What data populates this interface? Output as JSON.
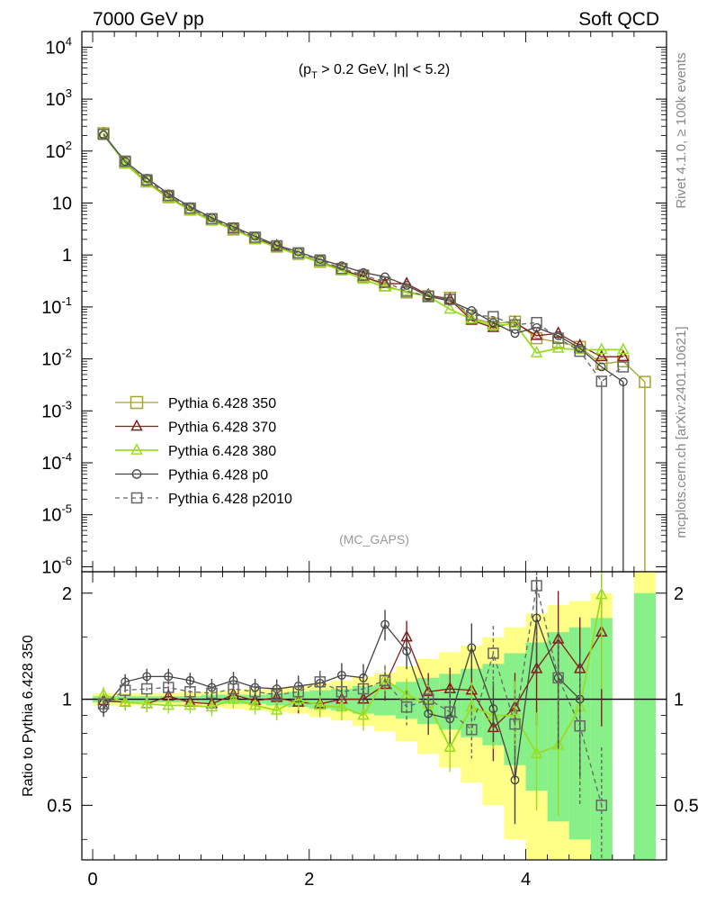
{
  "header": {
    "left": "7000 GeV pp",
    "right": "Soft QCD"
  },
  "side": {
    "rivet": "Rivet 4.1.0, ≥ 100k events",
    "mcplots": "mcplots.cern.ch [arXiv:2401.10621]"
  },
  "chart_data": [
    {
      "type": "line",
      "panel": "main",
      "annotation": "(p_T > 0.2 GeV, |η| < 5.2)",
      "annotation_parts": {
        "pre": "(p",
        "sub": "T",
        "post": " > 0.2 GeV, |η| < 5.2)"
      },
      "watermark": "(MC_GAPS)",
      "yscale": "log",
      "ylim": [
        8e-07,
        20000.0
      ],
      "xlim": [
        -0.1,
        5.3
      ],
      "y_tick_labels": [
        "10^4",
        "10^3",
        "10^2",
        "10",
        "1",
        "10^-1",
        "10^-2",
        "10^-3",
        "10^-4",
        "10^-5",
        "10^-6"
      ],
      "x": [
        0.1,
        0.3,
        0.5,
        0.7,
        0.9,
        1.1,
        1.3,
        1.5,
        1.7,
        1.9,
        2.1,
        2.3,
        2.5,
        2.7,
        2.9,
        3.1,
        3.3,
        3.5,
        3.7,
        3.9,
        4.1,
        4.3,
        4.5,
        4.7,
        4.9,
        5.1
      ],
      "series": [
        {
          "name": "Pythia 6.428 350",
          "color": "#a5a52b",
          "marker": "square",
          "dash": "solid",
          "values": [
            220,
            60,
            26,
            13,
            7.5,
            4.8,
            3.1,
            2.1,
            1.45,
            1.05,
            0.74,
            0.53,
            0.38,
            0.26,
            0.19,
            0.16,
            0.15,
            0.061,
            0.048,
            0.052,
            0.025,
            0.021,
            0.017,
            0.008,
            0.009,
            0.0036
          ]
        },
        {
          "name": "Pythia 6.428 370",
          "color": "#8b1a1a",
          "marker": "triangle",
          "dash": "solid",
          "values": [
            215,
            58,
            25,
            13.2,
            7.3,
            4.6,
            3.2,
            2.05,
            1.5,
            1.0,
            0.72,
            0.52,
            0.38,
            0.28,
            0.28,
            0.17,
            0.14,
            0.055,
            0.04,
            0.05,
            0.028,
            0.031,
            0.018,
            0.011,
            0.011,
            null
          ]
        },
        {
          "name": "Pythia 6.428 380",
          "color": "#99dd22",
          "marker": "triangle",
          "dash": "solid",
          "values": [
            210,
            57,
            24.5,
            12.5,
            7.2,
            4.5,
            3.1,
            2.0,
            1.4,
            1.0,
            0.71,
            0.5,
            0.34,
            0.24,
            0.2,
            0.16,
            0.09,
            0.058,
            0.043,
            0.048,
            0.013,
            0.016,
            0.015,
            0.015,
            0.015,
            null
          ]
        },
        {
          "name": "Pythia 6.428 p0",
          "color": "#444444",
          "marker": "circle",
          "dash": "solid",
          "values": [
            205,
            63,
            30,
            15,
            8.5,
            5.2,
            3.5,
            2.3,
            1.55,
            1.15,
            0.82,
            0.62,
            0.46,
            0.38,
            0.26,
            0.16,
            0.13,
            0.085,
            0.05,
            0.031,
            0.04,
            0.028,
            0.016,
            0.007,
            0.0036,
            null
          ]
        },
        {
          "name": "Pythia 6.428 p2010",
          "color": "#666666",
          "marker": "square",
          "dash": "dashed",
          "values": [
            210,
            64,
            28,
            14,
            8,
            5,
            3.3,
            2.2,
            1.5,
            1.1,
            0.8,
            0.55,
            0.41,
            0.3,
            0.2,
            0.16,
            0.14,
            0.07,
            0.065,
            0.045,
            0.05,
            0.025,
            0.014,
            0.0037,
            0.007,
            null
          ]
        }
      ]
    },
    {
      "type": "line",
      "panel": "ratio",
      "ylabel": "Ratio to Pythia 6.428 350",
      "ylim": [
        0.35,
        2.3
      ],
      "yticks": [
        "0.5",
        "1",
        "2"
      ],
      "xlim": [
        -0.1,
        5.3
      ],
      "xticks": [
        "0",
        "2",
        "4"
      ],
      "x": [
        0.1,
        0.3,
        0.5,
        0.7,
        0.9,
        1.1,
        1.3,
        1.5,
        1.7,
        1.9,
        2.1,
        2.3,
        2.5,
        2.7,
        2.9,
        3.1,
        3.3,
        3.5,
        3.7,
        3.9,
        4.1,
        4.3,
        4.5,
        4.7
      ],
      "band_green": [
        0.02,
        0.02,
        0.02,
        0.02,
        0.02,
        0.03,
        0.03,
        0.03,
        0.04,
        0.05,
        0.06,
        0.07,
        0.09,
        0.1,
        0.12,
        0.15,
        0.18,
        0.22,
        0.26,
        0.35,
        0.45,
        0.55,
        0.6,
        0.7
      ],
      "band_yellow": [
        0.04,
        0.04,
        0.04,
        0.04,
        0.05,
        0.05,
        0.06,
        0.07,
        0.08,
        0.09,
        0.11,
        0.13,
        0.16,
        0.19,
        0.24,
        0.3,
        0.36,
        0.42,
        0.5,
        0.6,
        0.75,
        0.85,
        0.9,
        1.0
      ],
      "series": [
        {
          "name": "Pythia 6.428 370",
          "values": [
            0.99,
            0.98,
            0.97,
            1.02,
            0.98,
            0.97,
            1.03,
            0.99,
            1.01,
            0.98,
            0.97,
            1.0,
            1.0,
            1.1,
            1.5,
            1.05,
            1.07,
            1.06,
            0.83,
            0.95,
            1.22,
            1.48,
            1.22,
            1.55
          ]
        },
        {
          "name": "Pythia 6.428 380",
          "values": [
            1.03,
            0.98,
            0.97,
            0.96,
            0.96,
            0.95,
            1.0,
            0.96,
            0.93,
            1.0,
            0.96,
            0.95,
            0.9,
            1.14,
            1.03,
            0.97,
            0.73,
            0.95,
            0.9,
            0.9,
            0.7,
            0.74,
            0.95,
            1.98
          ]
        },
        {
          "name": "Pythia 6.428 p0",
          "values": [
            0.94,
            1.12,
            1.16,
            1.16,
            1.13,
            1.08,
            1.13,
            1.08,
            1.07,
            1.09,
            1.11,
            1.17,
            1.15,
            1.63,
            1.37,
            0.91,
            0.88,
            1.4,
            0.94,
            0.59,
            1.7,
            1.15,
            1.0,
            null
          ]
        },
        {
          "name": "Pythia 6.428 p2010",
          "values": [
            0.97,
            1.06,
            1.07,
            1.08,
            1.05,
            1.04,
            1.07,
            1.05,
            1.03,
            1.05,
            1.12,
            1.05,
            1.07,
            1.13,
            0.95,
            1.0,
            0.92,
            0.82,
            1.35,
            0.85,
            2.1,
            1.15,
            0.84,
            0.5
          ]
        }
      ]
    }
  ]
}
